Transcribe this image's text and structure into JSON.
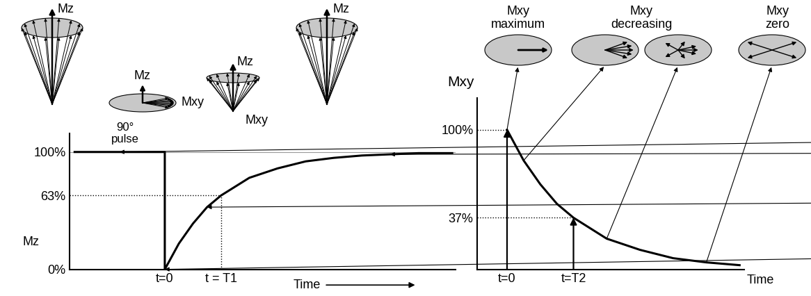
{
  "chart_data": [
    {
      "type": "line",
      "ylabel": "Mz",
      "xlabel": "Time",
      "color": "#000000",
      "x": [
        -1.6,
        0,
        0,
        0.25,
        0.5,
        0.75,
        1,
        1.5,
        2,
        2.5,
        3,
        3.5,
        4,
        4.5,
        5.1
      ],
      "values": [
        100,
        100,
        0,
        22,
        39,
        53,
        63,
        78,
        86,
        92,
        95,
        97,
        98,
        99,
        99
      ],
      "xlim": [
        -1.69,
        5.16
      ],
      "ylim": [
        0,
        116
      ],
      "xticks": [
        {
          "value": 0,
          "label": "t=0"
        },
        {
          "value": 1,
          "label": "t = T1"
        }
      ],
      "yticks": [
        {
          "value": 0,
          "label": "0%"
        },
        {
          "value": 63,
          "label": "63%"
        },
        {
          "value": 100,
          "label": "100%"
        }
      ],
      "annotations": [
        "Mz",
        "Mz",
        "Mxy",
        "90°\npulse",
        "Mz",
        "Mxy",
        "Mz"
      ]
    },
    {
      "type": "line",
      "ylabel": "Mxy",
      "xlabel": "Time",
      "color": "#000000",
      "x": [
        0,
        0.25,
        0.5,
        0.75,
        1,
        1.5,
        2,
        2.5,
        3,
        3.5
      ],
      "values": [
        100,
        78,
        61,
        47,
        37,
        22,
        14,
        8,
        5,
        3
      ],
      "xlim": [
        -0.45,
        3.57
      ],
      "ylim": [
        0,
        123
      ],
      "xticks": [
        {
          "value": 0,
          "label": "t=0"
        },
        {
          "value": 1,
          "label": "t=T2"
        }
      ],
      "yticks": [
        {
          "value": 37,
          "label": "37%"
        },
        {
          "value": 100,
          "label": "100%"
        }
      ],
      "annotations": [
        "Mxy\nmaximum",
        "Mxy\ndecreasing",
        "Mxy\nzero"
      ]
    }
  ]
}
